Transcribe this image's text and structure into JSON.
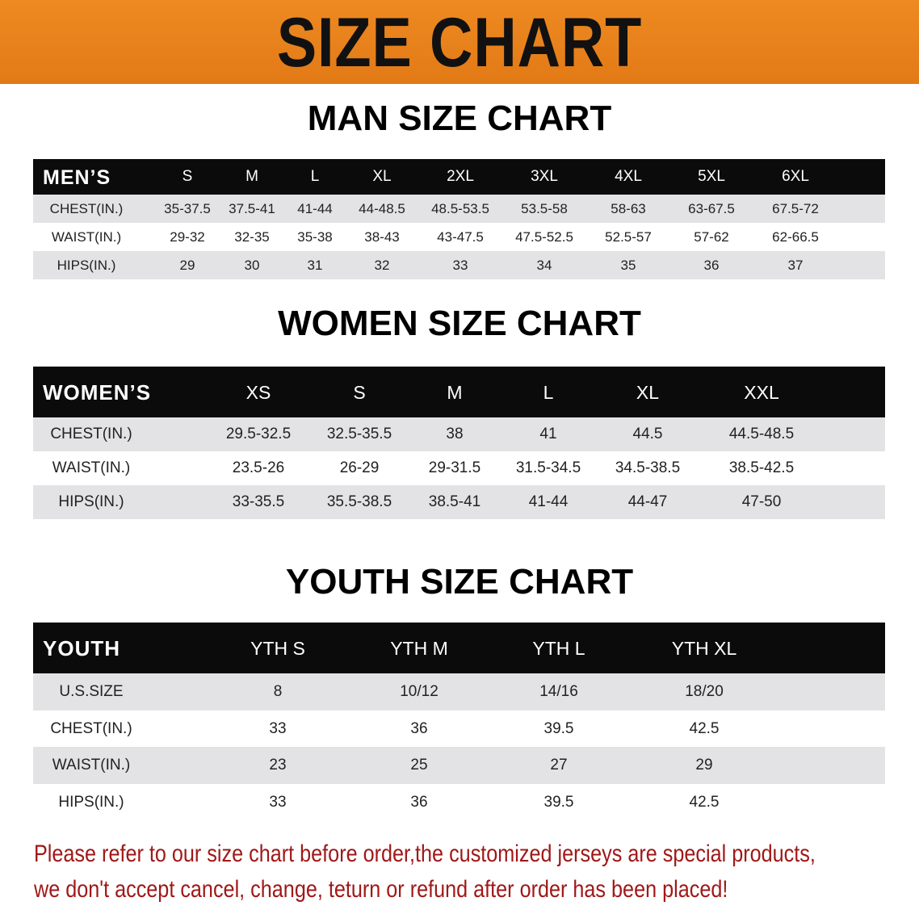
{
  "banner_title": "SIZE CHART",
  "men": {
    "title": "MAN SIZE CHART",
    "header_label": "MEN’S",
    "sizes": [
      "S",
      "M",
      "L",
      "XL",
      "2XL",
      "3XL",
      "4XL",
      "5XL",
      "6XL"
    ],
    "rows": [
      {
        "label": "CHEST(IN.)",
        "values": [
          "35-37.5",
          "37.5-41",
          "41-44",
          "44-48.5",
          "48.5-53.5",
          "53.5-58",
          "58-63",
          "63-67.5",
          "67.5-72"
        ]
      },
      {
        "label": "WAIST(IN.)",
        "values": [
          "29-32",
          "32-35",
          "35-38",
          "38-43",
          "43-47.5",
          "47.5-52.5",
          "52.5-57",
          "57-62",
          "62-66.5"
        ]
      },
      {
        "label": "HIPS(IN.)",
        "values": [
          "29",
          "30",
          "31",
          "32",
          "33",
          "34",
          "35",
          "36",
          "37"
        ]
      }
    ]
  },
  "women": {
    "title": "WOMEN SIZE CHART",
    "header_label": "WOMEN’S",
    "sizes": [
      "XS",
      "S",
      "M",
      "L",
      "XL",
      "XXL"
    ],
    "rows": [
      {
        "label": "CHEST(IN.)",
        "values": [
          "29.5-32.5",
          "32.5-35.5",
          "38",
          "41",
          "44.5",
          "44.5-48.5"
        ]
      },
      {
        "label": "WAIST(IN.)",
        "values": [
          "23.5-26",
          "26-29",
          "29-31.5",
          "31.5-34.5",
          "34.5-38.5",
          "38.5-42.5"
        ]
      },
      {
        "label": "HIPS(IN.)",
        "values": [
          "33-35.5",
          "35.5-38.5",
          "38.5-41",
          "41-44",
          "44-47",
          "47-50"
        ]
      }
    ]
  },
  "youth": {
    "title": "YOUTH SIZE CHART",
    "header_label": "YOUTH",
    "sizes": [
      "YTH S",
      "YTH M",
      "YTH L",
      "YTH XL"
    ],
    "rows": [
      {
        "label": "U.S.SIZE",
        "values": [
          "8",
          "10/12",
          "14/16",
          "18/20"
        ]
      },
      {
        "label": "CHEST(IN.)",
        "values": [
          "33",
          "36",
          "39.5",
          "42.5"
        ]
      },
      {
        "label": "WAIST(IN.)",
        "values": [
          "23",
          "25",
          "27",
          "29"
        ]
      },
      {
        "label": "HIPS(IN.)",
        "values": [
          "33",
          "36",
          "39.5",
          "42.5"
        ]
      }
    ]
  },
  "note_line1": "Please refer to our size chart before order,the customized jerseys are special products,",
  "note_line2": "we don't accept cancel, change, teturn or refund after order has been placed!",
  "colors": {
    "banner": "#e8801c",
    "header": "#0b0b0b",
    "row_alt": "#e3e3e5",
    "note": "#a01818"
  }
}
